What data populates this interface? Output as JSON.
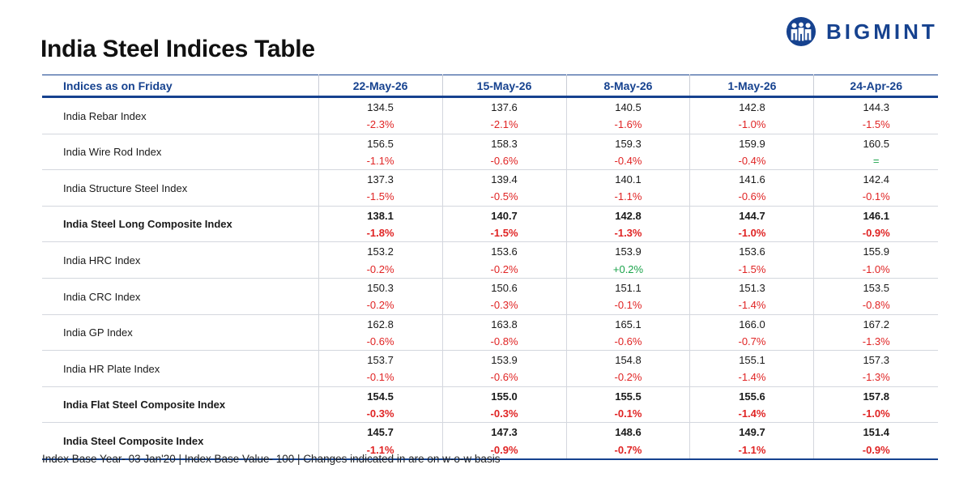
{
  "title": "India Steel Indices Table",
  "logo": {
    "text": "BIGMINT",
    "brand_color": "#16428f"
  },
  "table": {
    "header": [
      "Indices as on Friday",
      "22-May-26",
      "15-May-26",
      "8-May-26",
      "1-May-26",
      "24-Apr-26"
    ],
    "rows": [
      {
        "name": "India Rebar Index",
        "bold": false,
        "values": [
          "134.5",
          "137.6",
          "140.5",
          "142.8",
          "144.3"
        ],
        "changes": [
          "-2.3%",
          "-2.1%",
          "-1.6%",
          "-1.0%",
          "-1.5%"
        ]
      },
      {
        "name": "India Wire Rod Index",
        "bold": false,
        "values": [
          "156.5",
          "158.3",
          "159.3",
          "159.9",
          "160.5"
        ],
        "changes": [
          "-1.1%",
          "-0.6%",
          "-0.4%",
          "-0.4%",
          "="
        ]
      },
      {
        "name": "India Structure Steel Index",
        "bold": false,
        "values": [
          "137.3",
          "139.4",
          "140.1",
          "141.6",
          "142.4"
        ],
        "changes": [
          "-1.5%",
          "-0.5%",
          "-1.1%",
          "-0.6%",
          "-0.1%"
        ]
      },
      {
        "name": "India Steel Long Composite Index",
        "bold": true,
        "values": [
          "138.1",
          "140.7",
          "142.8",
          "144.7",
          "146.1"
        ],
        "changes": [
          "-1.8%",
          "-1.5%",
          "-1.3%",
          "-1.0%",
          "-0.9%"
        ]
      },
      {
        "name": "India HRC Index",
        "bold": false,
        "values": [
          "153.2",
          "153.6",
          "153.9",
          "153.6",
          "155.9"
        ],
        "changes": [
          "-0.2%",
          "-0.2%",
          "+0.2%",
          "-1.5%",
          "-1.0%"
        ]
      },
      {
        "name": "India CRC Index",
        "bold": false,
        "values": [
          "150.3",
          "150.6",
          "151.1",
          "151.3",
          "153.5"
        ],
        "changes": [
          "-0.2%",
          "-0.3%",
          "-0.1%",
          "-1.4%",
          "-0.8%"
        ]
      },
      {
        "name": "India GP Index",
        "bold": false,
        "values": [
          "162.8",
          "163.8",
          "165.1",
          "166.0",
          "167.2"
        ],
        "changes": [
          "-0.6%",
          "-0.8%",
          "-0.6%",
          "-0.7%",
          "-1.3%"
        ]
      },
      {
        "name": "India HR Plate Index",
        "bold": false,
        "values": [
          "153.7",
          "153.9",
          "154.8",
          "155.1",
          "157.3"
        ],
        "changes": [
          "-0.1%",
          "-0.6%",
          "-0.2%",
          "-1.4%",
          "-1.3%"
        ]
      },
      {
        "name": "India Flat Steel Composite Index",
        "bold": true,
        "values": [
          "154.5",
          "155.0",
          "155.5",
          "155.6",
          "157.8"
        ],
        "changes": [
          "-0.3%",
          "-0.3%",
          "-0.1%",
          "-1.4%",
          "-1.0%"
        ]
      },
      {
        "name": "India Steel Composite Index",
        "bold": true,
        "values": [
          "145.7",
          "147.3",
          "148.6",
          "149.7",
          "151.4"
        ],
        "changes": [
          "-1.1%",
          "-0.9%",
          "-0.7%",
          "-1.1%",
          "-0.9%"
        ]
      }
    ]
  },
  "colors": {
    "header_text": "#16428f",
    "negative": "#e02424",
    "positive": "#1aa34a"
  },
  "footnote": "Index Base Year- 03 Jan'20 | Index Base Value- 100 | Changes indicated in are on w-o-w basis"
}
